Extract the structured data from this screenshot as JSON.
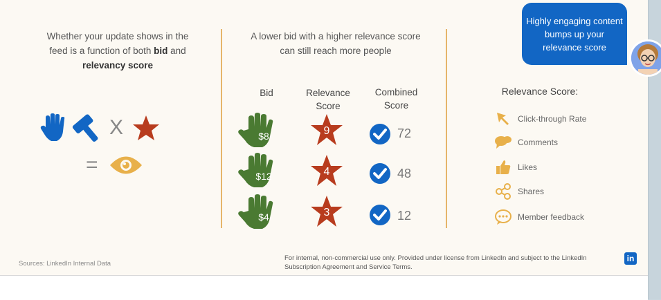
{
  "left": {
    "line1": "Whether your update shows in the",
    "line2_pre": "feed is a function of both ",
    "line2_bold": "bid",
    "line2_post": " and",
    "line3_bold": "relevancy score",
    "times_sign": "X",
    "equals_sign": "="
  },
  "middle": {
    "heading_line1": "A lower bid with a higher relevance score",
    "heading_line2": "can still reach more people",
    "col_bid": "Bid",
    "col_relevance_1": "Relevance",
    "col_relevance_2": "Score",
    "col_combined_1": "Combined",
    "col_combined_2": "Score",
    "rows": [
      {
        "bid": "$8",
        "relevance": "9",
        "combined": "72"
      },
      {
        "bid": "$12",
        "relevance": "4",
        "combined": "48"
      },
      {
        "bid": "$4",
        "relevance": "3",
        "combined": "12"
      }
    ]
  },
  "bubble": {
    "text": "Highly engaging content bumps up your relevance score"
  },
  "right": {
    "title": "Relevance Score:",
    "items": [
      {
        "label": "Click-through  Rate",
        "icon": "cursor-arrow-icon"
      },
      {
        "label": "Comments",
        "icon": "speech-bubbles-icon"
      },
      {
        "label": "Likes",
        "icon": "thumbs-up-icon"
      },
      {
        "label": "Shares",
        "icon": "share-icon"
      },
      {
        "label": "Member feedback",
        "icon": "chat-dots-icon"
      }
    ]
  },
  "footer": {
    "sources": "Sources: LinkedIn Internal Data",
    "license_line1": "For internal, non-commercial use only.  Provided under license from LinkedIn and subject to the LinkedIn",
    "license_line2": "Subscription Agreement and Service Terms.",
    "logo_text": "in"
  },
  "colors": {
    "blue": "#1266c4",
    "green": "#4a7a32",
    "red": "#b83c1e",
    "gold": "#e8b04a",
    "divider": "#e6b56a"
  }
}
